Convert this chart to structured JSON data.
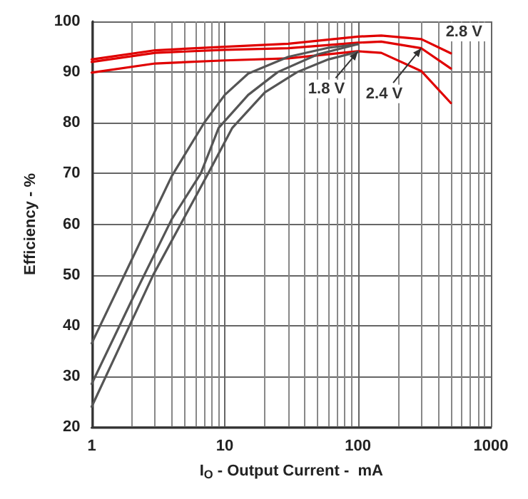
{
  "chart_data": {
    "type": "line",
    "xlabel": "I$_{O}$ - Output Current -  mA",
    "ylabel": "Efficiency - %",
    "log": "x",
    "xlim": [
      1,
      1000
    ],
    "xticks": [
      1,
      10,
      100,
      1000
    ],
    "ylim": [
      20,
      100
    ],
    "yticks": [
      20,
      30,
      40,
      50,
      60,
      70,
      80,
      90,
      100
    ],
    "grid": true,
    "marker": "none",
    "line_style": "solid",
    "series": [
      {
        "color": "#e00000",
        "x": [
          1,
          3,
          10,
          30,
          100,
          150,
          300,
          500
        ],
        "values": [
          92.5,
          94.3,
          95,
          95.6,
          97,
          97.2,
          96.5,
          93.7
        ]
      },
      {
        "color": "#e00000",
        "x": [
          1,
          3,
          10,
          30,
          100,
          150,
          300,
          500
        ],
        "values": [
          92,
          93.8,
          94.4,
          94.7,
          95.8,
          96,
          94.7,
          90.7
        ]
      },
      {
        "color": "#e00000",
        "x": [
          1,
          3,
          10,
          30,
          100,
          150,
          300,
          500
        ],
        "values": [
          89.9,
          91.7,
          92.3,
          92.7,
          94.1,
          93.8,
          90.2,
          83.9
        ]
      },
      {
        "color": "#555555",
        "x": [
          1,
          2,
          4,
          7,
          10,
          15,
          30,
          60,
          100
        ],
        "values": [
          36.5,
          53,
          69.5,
          80,
          85.5,
          89.7,
          93,
          94.8,
          95.5
        ]
      },
      {
        "color": "#555555",
        "x": [
          1,
          2,
          4,
          6.6,
          9,
          15,
          25,
          50,
          100
        ],
        "values": [
          28.5,
          45,
          61,
          70,
          79,
          85.5,
          90,
          93.5,
          95.5
        ]
      },
      {
        "color": "#555555",
        "x": [
          1,
          2.9,
          7.5,
          11.4,
          20,
          35,
          60,
          100
        ],
        "values": [
          24,
          50,
          70,
          79,
          86,
          90,
          92.5,
          94
        ]
      }
    ],
    "annotations": [
      {
        "text": "1.8 V",
        "x": 100,
        "y": 94
      },
      {
        "text": "2.4 V",
        "x": 300,
        "y": 94.7
      },
      "2.8 V"
    ]
  }
}
